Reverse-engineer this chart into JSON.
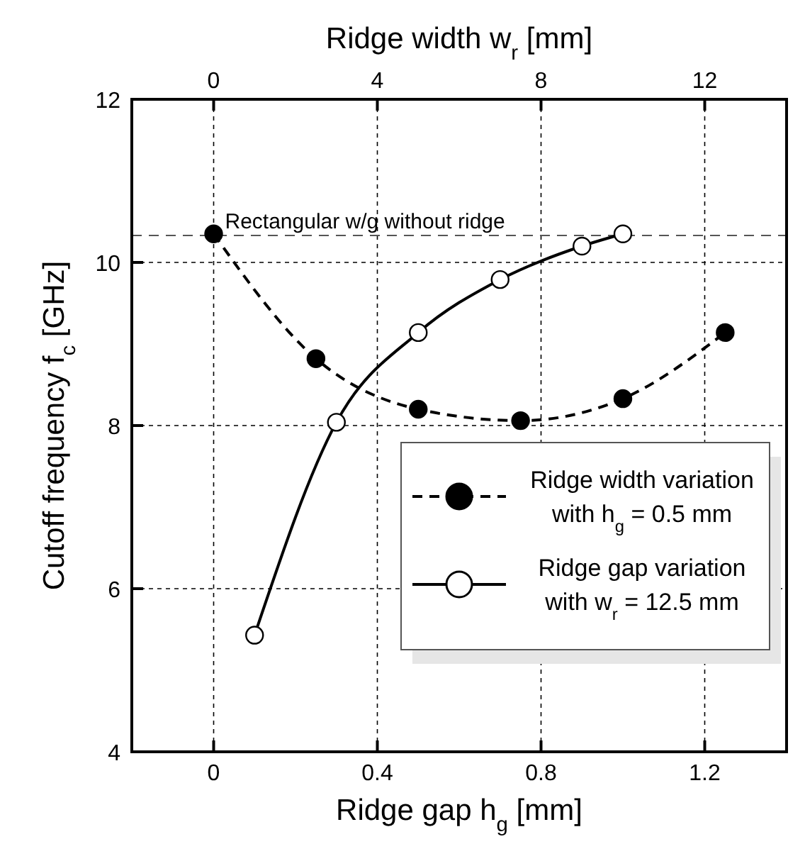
{
  "chart_data": {
    "type": "line",
    "xlabel": "Ridge gap h$_{g}$ [mm]",
    "x2label": "Ridge width w$_{r}$ [mm]",
    "ylabel": "Cutoff frequency f$_{c}$ [GHz]",
    "xlim": [
      -0.2,
      1.4
    ],
    "xticks": [
      0,
      0.4,
      0.8,
      1.2
    ],
    "x2lim": [
      -2,
      14
    ],
    "x2ticks": [
      0,
      4,
      8,
      12
    ],
    "ylim": [
      4,
      12
    ],
    "yticks": [
      4,
      6,
      8,
      10,
      12
    ],
    "grid": true,
    "legend": "bottom right",
    "series": [
      {
        "name": "Ridge width variation\nwith h$_{g}$ = 0.5 mm",
        "color": "#000000",
        "axis": "x2",
        "line_style": "dashed",
        "marker": "circle",
        "x": [
          0,
          2.5,
          5,
          7.5,
          10,
          12.5
        ],
        "values": [
          10.35,
          8.82,
          8.2,
          8.06,
          8.33,
          9.14
        ]
      },
      {
        "name": "Ridge gap variation\nwith w$_{r}$ = 12.5 mm",
        "color": "#000000",
        "line_style": "solid",
        "marker": "circle",
        "x": [
          0.1,
          0.3,
          0.5,
          0.7,
          0.9,
          1.0
        ],
        "values": [
          5.43,
          8.04,
          9.14,
          9.79,
          10.2,
          10.35
        ]
      }
    ],
    "ref_lines": [
      {
        "axis": "y",
        "value": 10.33,
        "label": "Rectangular w/g without ridge",
        "line_style": "dashed",
        "color": "#555555"
      }
    ]
  }
}
